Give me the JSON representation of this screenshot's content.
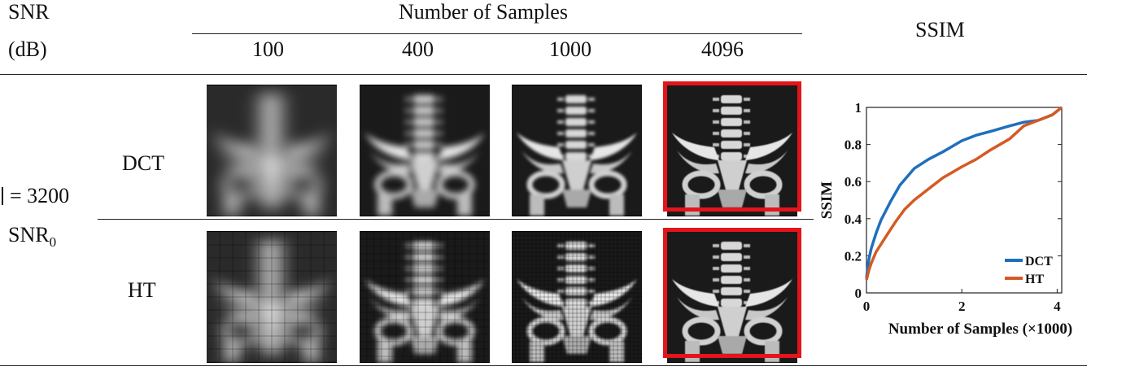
{
  "table": {
    "snr_header": "SNR",
    "snr_unit": "(dB)",
    "group_header": "Number of Samples",
    "sample_columns": [
      "100",
      "400",
      "1000",
      "4096"
    ],
    "ssim_header": "SSIM",
    "condition_label": "= 3200",
    "snr0_label": "SNR",
    "snr0_subscript": "0",
    "rows": [
      {
        "label": "DCT",
        "blur": [
          9,
          4,
          1.8,
          0.4
        ]
      },
      {
        "label": "HT",
        "blur": [
          8,
          3.5,
          1.5,
          0.4
        ]
      }
    ],
    "highlighted_column": "4096",
    "highlight_color": "#e3141b"
  },
  "chart_data": {
    "type": "line",
    "xlabel": "Number of Samples (×1000)",
    "ylabel": "SSIM",
    "xlim": [
      0,
      4.096
    ],
    "ylim": [
      0,
      1
    ],
    "xticks": [
      "0",
      "2",
      "4"
    ],
    "yticks": [
      "0",
      "0.2",
      "0.4",
      "0.6",
      "0.8",
      "1"
    ],
    "legend_position": "bottom-right",
    "series": [
      {
        "name": "DCT",
        "color": "#1f6fbd",
        "x": [
          0,
          0.05,
          0.1,
          0.2,
          0.3,
          0.5,
          0.7,
          1.0,
          1.3,
          1.6,
          1.8,
          2.0,
          2.3,
          2.6,
          3.0,
          3.3,
          3.6,
          3.9,
          4.096
        ],
        "y": [
          0.08,
          0.18,
          0.24,
          0.32,
          0.39,
          0.49,
          0.58,
          0.67,
          0.72,
          0.76,
          0.79,
          0.82,
          0.85,
          0.87,
          0.9,
          0.92,
          0.93,
          0.96,
          1.0
        ]
      },
      {
        "name": "HT",
        "color": "#d45a24",
        "x": [
          0,
          0.05,
          0.1,
          0.2,
          0.4,
          0.6,
          0.8,
          1.0,
          1.3,
          1.6,
          2.0,
          2.3,
          2.6,
          3.0,
          3.3,
          3.6,
          3.9,
          4.096
        ],
        "y": [
          0.07,
          0.12,
          0.16,
          0.22,
          0.3,
          0.38,
          0.45,
          0.5,
          0.56,
          0.62,
          0.68,
          0.72,
          0.77,
          0.83,
          0.9,
          0.93,
          0.96,
          1.0
        ]
      }
    ]
  }
}
